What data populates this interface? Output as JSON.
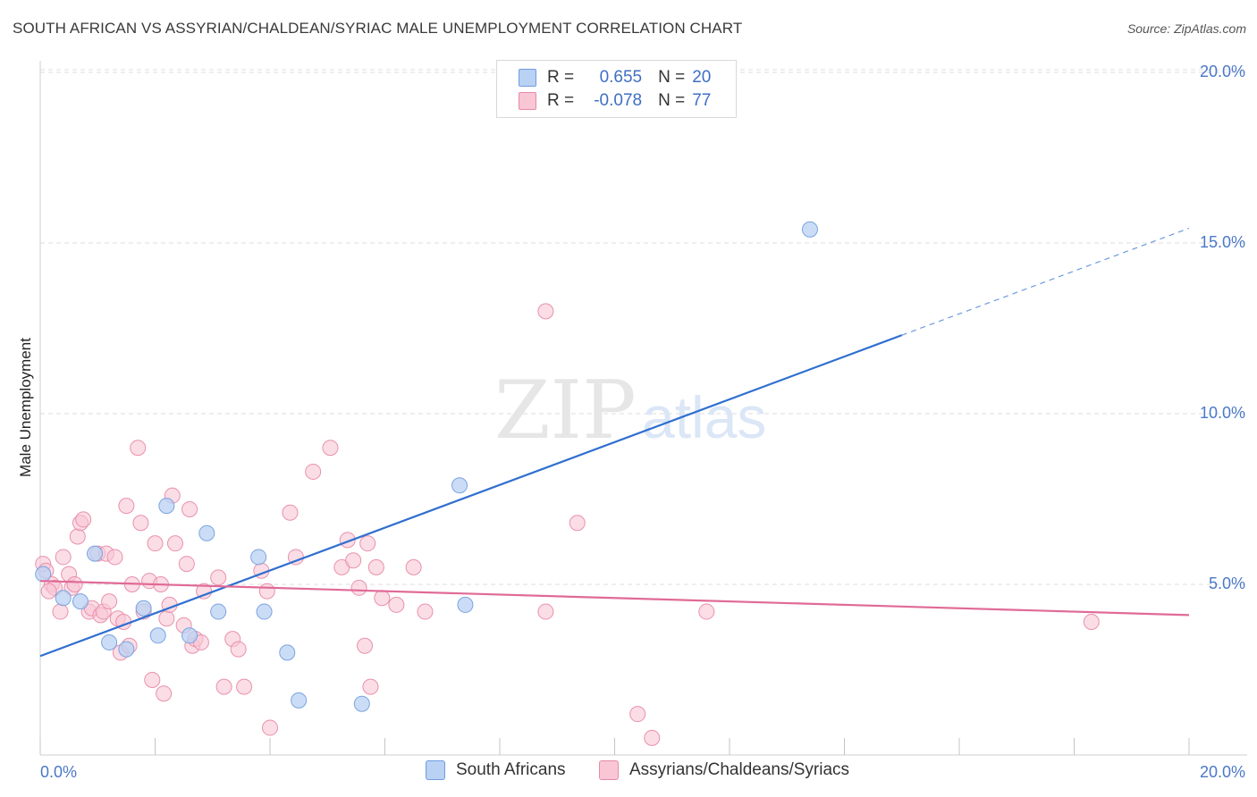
{
  "title": "SOUTH AFRICAN VS ASSYRIAN/CHALDEAN/SYRIAC MALE UNEMPLOYMENT CORRELATION CHART",
  "source": "Source: ZipAtlas.com",
  "watermark": {
    "zip": "ZIP",
    "atlas": "atlas"
  },
  "legend": {
    "r_label": "R =",
    "n_label": "N =",
    "rows": [
      {
        "r": "0.655",
        "n": "20",
        "fill": "#b9d1f3",
        "stroke": "#6f9be0"
      },
      {
        "r": "-0.078",
        "n": "77",
        "fill": "#f8c6d5",
        "stroke": "#e889a8"
      }
    ]
  },
  "colors": {
    "blue_fill": "#b9d1f3",
    "blue_stroke": "#7aa3e0",
    "blue_line": "#2f6fcf",
    "pink_fill": "#f8c6d5",
    "pink_stroke": "#e991ad",
    "pink_line": "#e06a96",
    "grid": "#dedede",
    "tick_text": "#4a78c8"
  },
  "chart_data": {
    "type": "scatter",
    "ylabel": "Male Unemployment",
    "x_tick_labels": [
      "0.0%",
      "20.0%"
    ],
    "y_tick_labels": [
      "5.0%",
      "10.0%",
      "15.0%",
      "20.0%"
    ],
    "xlim": [
      0,
      20
    ],
    "ylim": [
      0,
      20.5
    ],
    "grid": true,
    "series": [
      {
        "name": "South Africans",
        "color": "#b9d1f3",
        "points": [
          [
            0.05,
            5.3
          ],
          [
            0.4,
            4.6
          ],
          [
            0.7,
            4.5
          ],
          [
            0.95,
            5.9
          ],
          [
            1.2,
            3.3
          ],
          [
            1.5,
            3.1
          ],
          [
            1.8,
            4.3
          ],
          [
            2.05,
            3.5
          ],
          [
            2.2,
            7.3
          ],
          [
            2.6,
            3.5
          ],
          [
            2.9,
            6.5
          ],
          [
            3.1,
            4.2
          ],
          [
            3.8,
            5.8
          ],
          [
            3.9,
            4.2
          ],
          [
            4.3,
            3.0
          ],
          [
            4.5,
            1.6
          ],
          [
            5.6,
            1.5
          ],
          [
            7.3,
            7.9
          ],
          [
            7.4,
            4.4
          ],
          [
            13.4,
            15.4
          ]
        ],
        "trend": {
          "x0": 0,
          "y0": 2.9,
          "x1": 15.0,
          "y1": 12.3,
          "dash_to_x": 20.0
        }
      },
      {
        "name": "Assyrians/Chaldeans/Syriacs",
        "color": "#f8c6d5",
        "points": [
          [
            0.05,
            5.6
          ],
          [
            0.1,
            5.4
          ],
          [
            0.2,
            5.0
          ],
          [
            0.25,
            4.9
          ],
          [
            0.35,
            4.2
          ],
          [
            0.4,
            5.8
          ],
          [
            0.5,
            5.3
          ],
          [
            0.55,
            4.9
          ],
          [
            0.6,
            5.0
          ],
          [
            0.65,
            6.4
          ],
          [
            0.7,
            6.8
          ],
          [
            0.75,
            6.9
          ],
          [
            0.85,
            4.2
          ],
          [
            0.9,
            4.3
          ],
          [
            1.0,
            5.9
          ],
          [
            1.05,
            4.1
          ],
          [
            1.1,
            4.2
          ],
          [
            1.15,
            5.9
          ],
          [
            1.2,
            4.5
          ],
          [
            1.3,
            5.8
          ],
          [
            1.35,
            4.0
          ],
          [
            1.4,
            3.0
          ],
          [
            1.45,
            3.9
          ],
          [
            1.5,
            7.3
          ],
          [
            1.55,
            3.2
          ],
          [
            1.6,
            5.0
          ],
          [
            1.7,
            9.0
          ],
          [
            1.75,
            6.8
          ],
          [
            1.8,
            4.2
          ],
          [
            1.9,
            5.1
          ],
          [
            1.95,
            2.2
          ],
          [
            2.0,
            6.2
          ],
          [
            2.1,
            5.0
          ],
          [
            2.15,
            1.8
          ],
          [
            2.2,
            4.0
          ],
          [
            2.25,
            4.4
          ],
          [
            2.3,
            7.6
          ],
          [
            2.35,
            6.2
          ],
          [
            2.5,
            3.8
          ],
          [
            2.55,
            5.6
          ],
          [
            2.6,
            7.2
          ],
          [
            2.65,
            3.2
          ],
          [
            2.7,
            3.4
          ],
          [
            2.8,
            3.3
          ],
          [
            2.85,
            4.8
          ],
          [
            3.1,
            5.2
          ],
          [
            3.2,
            2.0
          ],
          [
            3.35,
            3.4
          ],
          [
            3.45,
            3.1
          ],
          [
            3.55,
            2.0
          ],
          [
            3.85,
            5.4
          ],
          [
            3.95,
            4.8
          ],
          [
            4.0,
            0.8
          ],
          [
            4.35,
            7.1
          ],
          [
            4.45,
            5.8
          ],
          [
            4.75,
            8.3
          ],
          [
            5.05,
            9.0
          ],
          [
            5.25,
            5.5
          ],
          [
            5.35,
            6.3
          ],
          [
            5.45,
            5.7
          ],
          [
            5.55,
            4.9
          ],
          [
            5.65,
            3.2
          ],
          [
            5.7,
            6.2
          ],
          [
            5.75,
            2.0
          ],
          [
            5.85,
            5.5
          ],
          [
            5.95,
            4.6
          ],
          [
            6.2,
            4.4
          ],
          [
            6.5,
            5.5
          ],
          [
            6.7,
            4.2
          ],
          [
            8.8,
            13.0
          ],
          [
            8.8,
            4.2
          ],
          [
            9.35,
            6.8
          ],
          [
            10.4,
            1.2
          ],
          [
            10.65,
            0.5
          ],
          [
            11.6,
            4.2
          ],
          [
            18.3,
            3.9
          ],
          [
            0.15,
            4.8
          ]
        ],
        "trend": {
          "x0": 0,
          "y0": 5.1,
          "x1": 20.0,
          "y1": 4.1
        }
      }
    ]
  }
}
